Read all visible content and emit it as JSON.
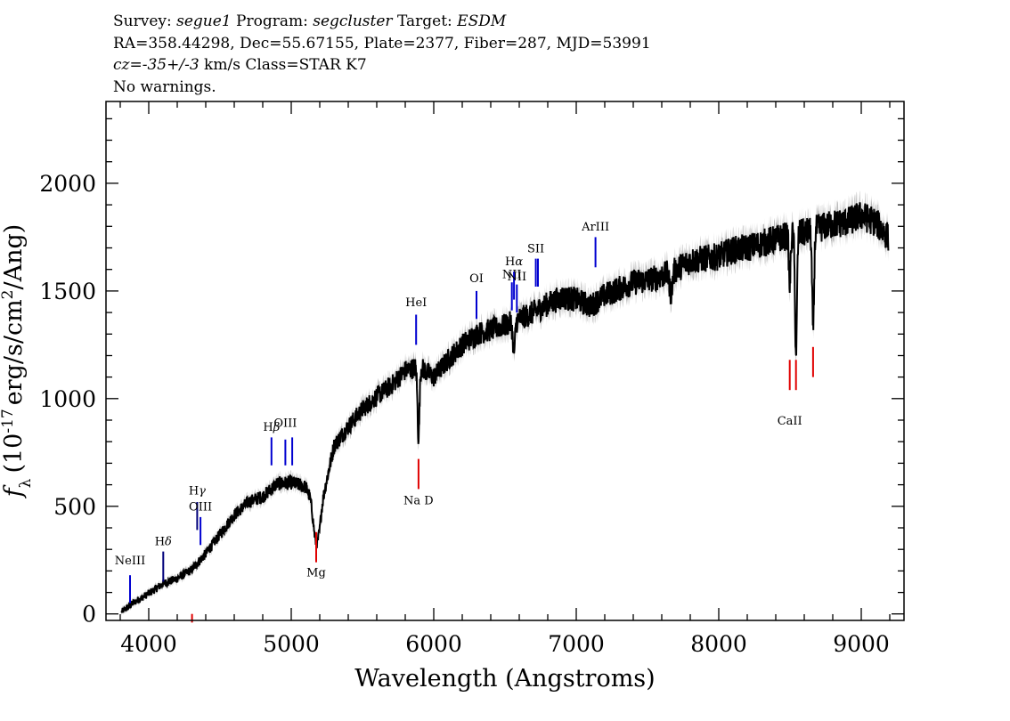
{
  "header": {
    "survey_label": "Survey:",
    "survey": "segue1",
    "program_label": "Program:",
    "program": "segcluster",
    "target_label": "Target:",
    "target": "ESDM",
    "line2": "RA=358.44298, Dec=55.67155, Plate=2377, Fiber=287, MJD=53991",
    "cz_label": "cz=",
    "cz_value": "-35+/-3",
    "cz_rest": " km/s Class=STAR K7",
    "line4": "No warnings."
  },
  "chart_data": {
    "type": "line",
    "title": "",
    "xlabel": "Wavelength (Angstroms)",
    "ylabel": "f_λ (10^-17 erg/s/cm^2/Ang)",
    "ylabel_parts": {
      "f": "f",
      "lambda": "λ",
      "open": "(10",
      "exp": "-17",
      "units": "erg/s/cm",
      "sq": "2",
      "close": "/Ang)"
    },
    "xlim": [
      3700,
      9300
    ],
    "ylim": [
      -30,
      2380
    ],
    "x_ticks": [
      4000,
      5000,
      6000,
      7000,
      8000,
      9000
    ],
    "x_tick_labels": [
      "4000",
      "5000",
      "6000",
      "7000",
      "8000",
      "9000"
    ],
    "y_ticks": [
      0,
      500,
      1000,
      1500,
      2000
    ],
    "y_tick_labels": [
      "0",
      "500",
      "1000",
      "1500",
      "2000"
    ],
    "spectrum_anchor_points": [
      [
        3810,
        10
      ],
      [
        3900,
        55
      ],
      [
        4000,
        95
      ],
      [
        4100,
        140
      ],
      [
        4200,
        165
      ],
      [
        4300,
        205
      ],
      [
        4400,
        280
      ],
      [
        4500,
        370
      ],
      [
        4600,
        460
      ],
      [
        4700,
        520
      ],
      [
        4800,
        545
      ],
      [
        4900,
        605
      ],
      [
        5000,
        610
      ],
      [
        5100,
        590
      ],
      [
        5200,
        470
      ],
      [
        5300,
        780
      ],
      [
        5400,
        870
      ],
      [
        5500,
        950
      ],
      [
        5600,
        1010
      ],
      [
        5700,
        1060
      ],
      [
        5800,
        1130
      ],
      [
        5900,
        1150
      ],
      [
        6000,
        1100
      ],
      [
        6100,
        1180
      ],
      [
        6200,
        1250
      ],
      [
        6300,
        1300
      ],
      [
        6400,
        1320
      ],
      [
        6500,
        1340
      ],
      [
        6600,
        1370
      ],
      [
        6700,
        1400
      ],
      [
        6800,
        1440
      ],
      [
        6900,
        1470
      ],
      [
        7000,
        1460
      ],
      [
        7100,
        1430
      ],
      [
        7200,
        1480
      ],
      [
        7300,
        1510
      ],
      [
        7400,
        1540
      ],
      [
        7500,
        1550
      ],
      [
        7600,
        1570
      ],
      [
        7700,
        1600
      ],
      [
        7800,
        1640
      ],
      [
        7900,
        1650
      ],
      [
        8000,
        1660
      ],
      [
        8100,
        1690
      ],
      [
        8200,
        1700
      ],
      [
        8300,
        1720
      ],
      [
        8400,
        1740
      ],
      [
        8500,
        1760
      ],
      [
        8600,
        1770
      ],
      [
        8700,
        1790
      ],
      [
        8800,
        1810
      ],
      [
        8900,
        1820
      ],
      [
        9000,
        1850
      ],
      [
        9100,
        1820
      ],
      [
        9190,
        1750
      ]
    ],
    "absorption_features": [
      {
        "x": 5175,
        "depth": 170,
        "width": 20
      },
      {
        "x": 5893,
        "depth": 330,
        "width": 7
      },
      {
        "x": 6563,
        "depth": 140,
        "width": 8
      },
      {
        "x": 7665,
        "depth": 100,
        "width": 10
      },
      {
        "x": 8498,
        "depth": 240,
        "width": 6
      },
      {
        "x": 8542,
        "depth": 560,
        "width": 7
      },
      {
        "x": 8662,
        "depth": 460,
        "width": 7
      }
    ],
    "emission_lines": [
      {
        "label": "NeIII",
        "x": 3869,
        "y_top": 180,
        "y_bot": 50,
        "label_y": 230,
        "color": "#0000d0",
        "sub": ""
      },
      {
        "label": "H",
        "sub": "δ",
        "x": 4102,
        "y_top": 290,
        "y_bot": 150,
        "label_y": 320,
        "color": "#00007a"
      },
      {
        "label": "H",
        "sub": "γ",
        "x": 4340,
        "y_top": 520,
        "y_bot": 390,
        "label_y": 555,
        "color": "#00007a"
      },
      {
        "label": "OIII",
        "x": 4363,
        "y_top": 450,
        "y_bot": 320,
        "label_y": 480,
        "color": "#0000d0",
        "sub": ""
      },
      {
        "label": "H",
        "sub": "β",
        "x": 4861,
        "y_top": 820,
        "y_bot": 690,
        "label_y": 850,
        "color": "#0000d0"
      },
      {
        "label": "OIII",
        "x": 4959,
        "y_top": 810,
        "y_bot": 690,
        "label_y": 870,
        "color": "#0000d0",
        "sub": ""
      },
      {
        "label": "",
        "x": 5007,
        "y_top": 820,
        "y_bot": 690,
        "label_y": 0,
        "color": "#0000d0",
        "sub": ""
      },
      {
        "label": "HeI",
        "x": 5876,
        "y_top": 1390,
        "y_bot": 1250,
        "label_y": 1430,
        "color": "#0000d0",
        "sub": ""
      },
      {
        "label": "OI",
        "x": 6300,
        "y_top": 1500,
        "y_bot": 1370,
        "label_y": 1540,
        "color": "#0000d0",
        "sub": ""
      },
      {
        "label": "NII",
        "x": 6548,
        "y_top": 1540,
        "y_bot": 1410,
        "label_y": 1560,
        "color": "#0000d0",
        "sub": ""
      },
      {
        "label": "H",
        "sub": "α",
        "x": 6563,
        "y_top": 1590,
        "y_bot": 1460,
        "label_y": 1620,
        "color": "#0000d0"
      },
      {
        "label": "NII",
        "x": 6583,
        "y_top": 1530,
        "y_bot": 1400,
        "label_y": 1550,
        "color": "#0000d0",
        "sub": ""
      },
      {
        "label": "SII",
        "x": 6716,
        "y_top": 1650,
        "y_bot": 1520,
        "label_y": 1680,
        "color": "#0000d0",
        "sub": ""
      },
      {
        "label": "",
        "x": 6731,
        "y_top": 1650,
        "y_bot": 1520,
        "label_y": 0,
        "color": "#0000d0",
        "sub": ""
      },
      {
        "label": "ArIII",
        "x": 7135,
        "y_top": 1750,
        "y_bot": 1610,
        "label_y": 1780,
        "color": "#0000d0",
        "sub": ""
      }
    ],
    "absorption_markers": [
      {
        "label": "",
        "x": 4304,
        "y_top": 0,
        "y_bot": -40,
        "label_y": 0,
        "color": "#e00000"
      },
      {
        "label": "Mg",
        "x": 5175,
        "y_top": 380,
        "y_bot": 240,
        "label_y": 175,
        "color": "#e00000"
      },
      {
        "label": "Na D",
        "x": 5893,
        "y_top": 720,
        "y_bot": 580,
        "label_y": 510,
        "color": "#e00000"
      },
      {
        "label": "CaII",
        "x": 8498,
        "y_top": 1180,
        "y_bot": 1040,
        "label_y": 880,
        "color": "#e00000"
      },
      {
        "label": "",
        "x": 8542,
        "y_top": 1180,
        "y_bot": 1040,
        "label_y": 0,
        "color": "#e00000"
      },
      {
        "label": "",
        "x": 8662,
        "y_top": 1240,
        "y_bot": 1100,
        "label_y": 0,
        "color": "#e00000"
      }
    ]
  }
}
